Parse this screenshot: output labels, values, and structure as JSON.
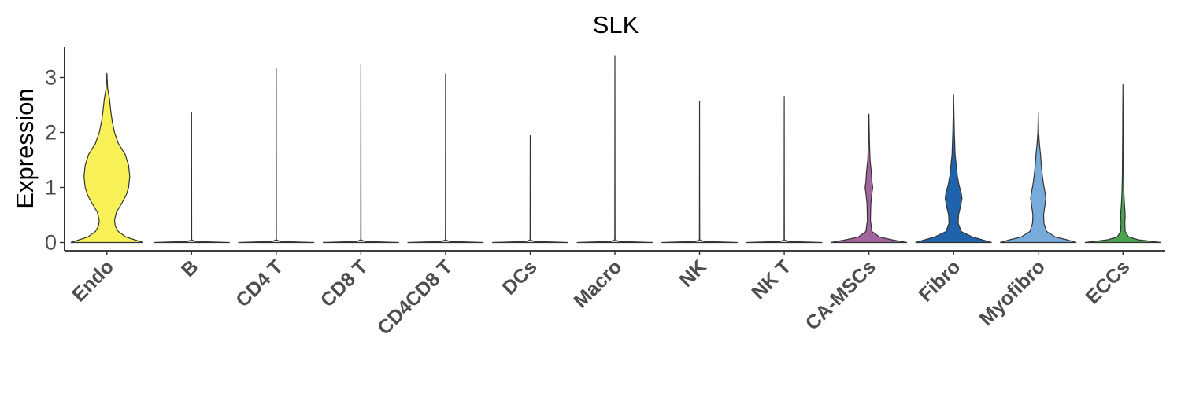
{
  "chart_data": {
    "type": "violin",
    "title": "SLK",
    "xlabel": "",
    "ylabel": "Expression",
    "ylim": [
      -0.15,
      3.55
    ],
    "yticks": [
      0,
      1,
      2,
      3
    ],
    "grid": false,
    "legend": "none",
    "categories": [
      "Endo",
      "B",
      "CD4 T",
      "CD8 T",
      "CD4CD8 T",
      "DCs",
      "Macro",
      "NK",
      "NK T",
      "CA-MSCs",
      "Fibro",
      "Myofibro",
      "ECCs"
    ],
    "series": [
      {
        "category": "Endo",
        "color": "#f7f057",
        "max": 3.08,
        "density": [
          [
            0,
            0.95
          ],
          [
            0.1,
            0.5
          ],
          [
            0.2,
            0.3
          ],
          [
            0.3,
            0.22
          ],
          [
            0.4,
            0.2
          ],
          [
            0.55,
            0.25
          ],
          [
            0.7,
            0.38
          ],
          [
            0.85,
            0.5
          ],
          [
            1.0,
            0.57
          ],
          [
            1.2,
            0.6
          ],
          [
            1.4,
            0.57
          ],
          [
            1.6,
            0.48
          ],
          [
            1.8,
            0.3
          ],
          [
            2.0,
            0.2
          ],
          [
            2.2,
            0.14
          ],
          [
            2.4,
            0.1
          ],
          [
            2.6,
            0.07
          ],
          [
            2.8,
            0.02
          ],
          [
            3.08,
            0
          ]
        ]
      },
      {
        "category": "B",
        "color": "#e8e8e8",
        "max": 2.37,
        "density": [
          [
            0,
            1
          ],
          [
            0.02,
            0.1
          ],
          [
            0.05,
            0.004
          ],
          [
            2.37,
            0
          ]
        ]
      },
      {
        "category": "CD4 T",
        "color": "#e8e8e8",
        "max": 3.17,
        "density": [
          [
            0,
            1
          ],
          [
            0.02,
            0.1
          ],
          [
            0.05,
            0.004
          ],
          [
            3.17,
            0
          ]
        ]
      },
      {
        "category": "CD8 T",
        "color": "#e8e8e8",
        "max": 3.24,
        "density": [
          [
            0,
            1
          ],
          [
            0.02,
            0.1
          ],
          [
            0.05,
            0.004
          ],
          [
            3.24,
            0
          ]
        ]
      },
      {
        "category": "CD4CD8 T",
        "color": "#e8e8e8",
        "max": 3.07,
        "density": [
          [
            0,
            1
          ],
          [
            0.02,
            0.1
          ],
          [
            0.05,
            0.004
          ],
          [
            3.07,
            0
          ]
        ]
      },
      {
        "category": "DCs",
        "color": "#e8e8e8",
        "max": 1.95,
        "density": [
          [
            0,
            1
          ],
          [
            0.02,
            0.1
          ],
          [
            0.05,
            0.004
          ],
          [
            1.95,
            0
          ]
        ]
      },
      {
        "category": "Macro",
        "color": "#e8e8e8",
        "max": 3.4,
        "density": [
          [
            0,
            1
          ],
          [
            0.02,
            0.1
          ],
          [
            0.05,
            0.004
          ],
          [
            3.4,
            0
          ]
        ]
      },
      {
        "category": "NK",
        "color": "#e8e8e8",
        "max": 2.58,
        "density": [
          [
            0,
            1
          ],
          [
            0.02,
            0.1
          ],
          [
            0.05,
            0.004
          ],
          [
            2.58,
            0
          ]
        ]
      },
      {
        "category": "NK T",
        "color": "#e8e8e8",
        "max": 2.66,
        "density": [
          [
            0,
            1
          ],
          [
            0.02,
            0.1
          ],
          [
            0.05,
            0.004
          ],
          [
            2.66,
            0
          ]
        ]
      },
      {
        "category": "CA-MSCs",
        "color": "#a4649e",
        "max": 2.34,
        "density": [
          [
            0,
            1
          ],
          [
            0.05,
            0.6
          ],
          [
            0.1,
            0.28
          ],
          [
            0.2,
            0.08
          ],
          [
            0.4,
            0.04
          ],
          [
            0.7,
            0.05
          ],
          [
            0.9,
            0.08
          ],
          [
            1.0,
            0.1
          ],
          [
            1.1,
            0.08
          ],
          [
            1.3,
            0.06
          ],
          [
            1.5,
            0.03
          ],
          [
            1.8,
            0.015
          ],
          [
            2.34,
            0
          ]
        ]
      },
      {
        "category": "Fibro",
        "color": "#1f63ac",
        "max": 2.69,
        "density": [
          [
            0,
            1
          ],
          [
            0.05,
            0.75
          ],
          [
            0.1,
            0.5
          ],
          [
            0.2,
            0.2
          ],
          [
            0.35,
            0.12
          ],
          [
            0.5,
            0.13
          ],
          [
            0.65,
            0.18
          ],
          [
            0.8,
            0.22
          ],
          [
            0.9,
            0.2
          ],
          [
            1.05,
            0.14
          ],
          [
            1.2,
            0.1
          ],
          [
            1.4,
            0.07
          ],
          [
            1.6,
            0.04
          ],
          [
            2.0,
            0.02
          ],
          [
            2.69,
            0
          ]
        ]
      },
      {
        "category": "Myofibro",
        "color": "#79aadc",
        "max": 2.37,
        "density": [
          [
            0,
            1
          ],
          [
            0.05,
            0.75
          ],
          [
            0.1,
            0.45
          ],
          [
            0.2,
            0.22
          ],
          [
            0.35,
            0.15
          ],
          [
            0.5,
            0.14
          ],
          [
            0.65,
            0.17
          ],
          [
            0.8,
            0.2
          ],
          [
            0.9,
            0.18
          ],
          [
            1.05,
            0.14
          ],
          [
            1.2,
            0.11
          ],
          [
            1.4,
            0.08
          ],
          [
            1.6,
            0.06
          ],
          [
            1.8,
            0.03
          ],
          [
            2.0,
            0.01
          ],
          [
            2.37,
            0
          ]
        ]
      },
      {
        "category": "ECCs",
        "color": "#49a550",
        "max": 2.88,
        "density": [
          [
            0,
            1
          ],
          [
            0.05,
            0.4
          ],
          [
            0.1,
            0.15
          ],
          [
            0.2,
            0.06
          ],
          [
            0.35,
            0.05
          ],
          [
            0.5,
            0.06
          ],
          [
            0.7,
            0.04
          ],
          [
            0.9,
            0.025
          ],
          [
            1.2,
            0.015
          ],
          [
            1.6,
            0.01
          ],
          [
            2.88,
            0
          ]
        ]
      }
    ]
  }
}
